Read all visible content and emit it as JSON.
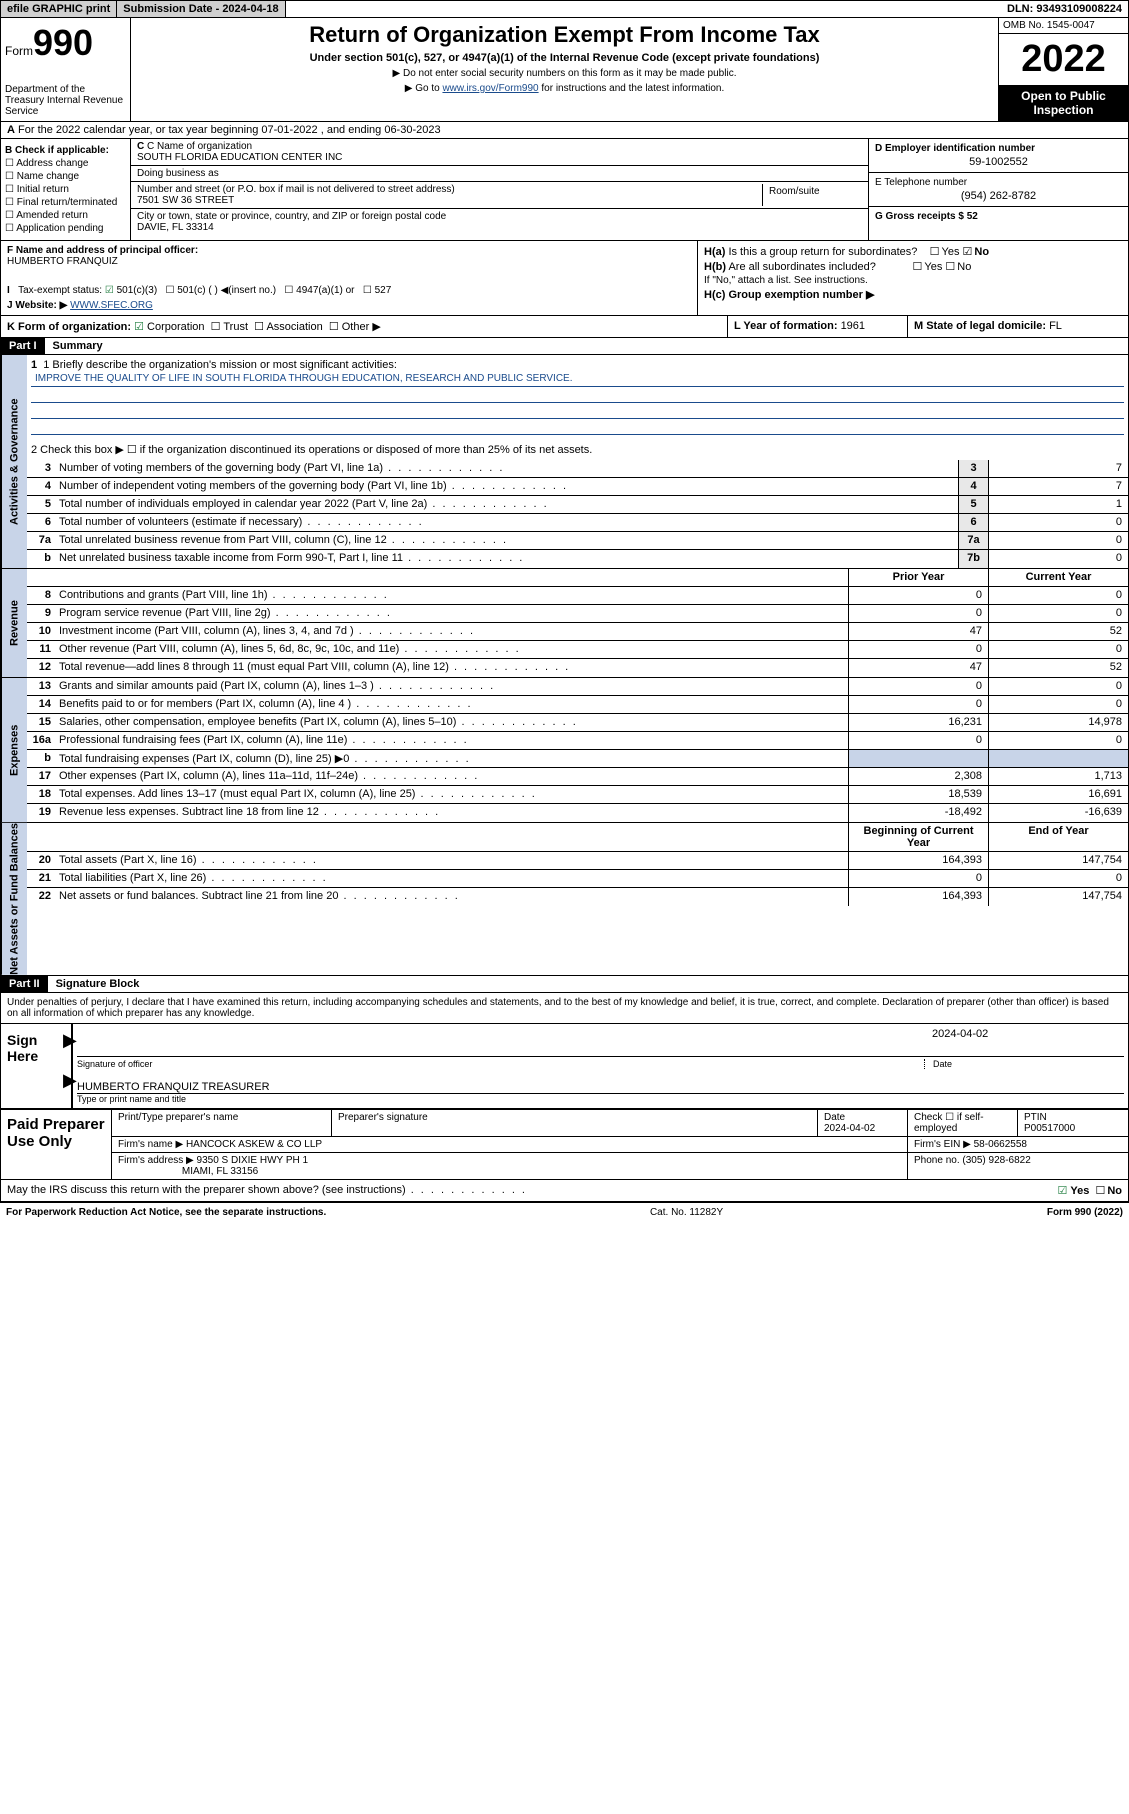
{
  "topbar": {
    "efile": "efile GRAPHIC print",
    "submission_label": "Submission Date - 2024-04-18",
    "dln": "DLN: 93493109008224"
  },
  "header": {
    "form_label": "Form",
    "form_num": "990",
    "title": "Return of Organization Exempt From Income Tax",
    "subtitle": "Under section 501(c), 527, or 4947(a)(1) of the Internal Revenue Code (except private foundations)",
    "note1": "Do not enter social security numbers on this form as it may be made public.",
    "note2_prefix": "Go to ",
    "note2_link": "www.irs.gov/Form990",
    "note2_suffix": " for instructions and the latest information.",
    "dept": "Department of the Treasury Internal Revenue Service",
    "omb": "OMB No. 1545-0047",
    "year": "2022",
    "inspection": "Open to Public Inspection"
  },
  "section_a": "For the 2022 calendar year, or tax year beginning 07-01-2022  , and ending 06-30-2023",
  "check_b": {
    "label": "B Check if applicable:",
    "items": [
      "Address change",
      "Name change",
      "Initial return",
      "Final return/terminated",
      "Amended return",
      "Application pending"
    ]
  },
  "col_c": {
    "name_label": "C Name of organization",
    "name": "SOUTH FLORIDA EDUCATION CENTER INC",
    "dba_label": "Doing business as",
    "addr_label": "Number and street (or P.O. box if mail is not delivered to street address)",
    "room_label": "Room/suite",
    "addr": "7501 SW 36 STREET",
    "city_label": "City or town, state or province, country, and ZIP or foreign postal code",
    "city": "DAVIE, FL  33314"
  },
  "col_d": {
    "ein_label": "D Employer identification number",
    "ein": "59-1002552",
    "phone_label": "E Telephone number",
    "phone": "(954) 262-8782",
    "gross_label": "G Gross receipts $ 52"
  },
  "row_f": {
    "label": "F  Name and address of principal officer:",
    "name": "HUMBERTO FRANQUIZ"
  },
  "row_h": {
    "ha": "H(a)  Is this a group return for subordinates?",
    "hb": "H(b)  Are all subordinates included?",
    "hb_note": "If \"No,\" attach a list. See instructions.",
    "hc": "H(c)  Group exemption number ▶",
    "yes": "Yes",
    "no": "No"
  },
  "row_i": "I    Tax-exempt status:",
  "row_i_opts": [
    "501(c)(3)",
    "501(c) (  ) ◀(insert no.)",
    "4947(a)(1) or",
    "527"
  ],
  "row_j": {
    "label": "J    Website: ▶ ",
    "val": "WWW.SFEC.ORG"
  },
  "row_k": "K Form of organization:",
  "row_k_opts": [
    "Corporation",
    "Trust",
    "Association",
    "Other ▶"
  ],
  "row_l": {
    "label": "L Year of formation: ",
    "val": "1961"
  },
  "row_m": {
    "label": "M State of legal domicile: ",
    "val": "FL"
  },
  "part1": {
    "header": "Part I",
    "title": "Summary",
    "line1_label": "1  Briefly describe the organization's mission or most significant activities:",
    "mission": "IMPROVE THE QUALITY OF LIFE IN SOUTH FLORIDA THROUGH EDUCATION, RESEARCH AND PUBLIC SERVICE.",
    "line2": "2    Check this box ▶ ☐  if the organization discontinued its operations or disposed of more than 25% of its net assets."
  },
  "vtabs": {
    "gov": "Activities & Governance",
    "rev": "Revenue",
    "exp": "Expenses",
    "net": "Net Assets or Fund Balances"
  },
  "gov_lines": [
    {
      "n": "3",
      "d": "Number of voting members of the governing body (Part VI, line 1a)",
      "b": "3",
      "v": "7"
    },
    {
      "n": "4",
      "d": "Number of independent voting members of the governing body (Part VI, line 1b)",
      "b": "4",
      "v": "7"
    },
    {
      "n": "5",
      "d": "Total number of individuals employed in calendar year 2022 (Part V, line 2a)",
      "b": "5",
      "v": "1"
    },
    {
      "n": "6",
      "d": "Total number of volunteers (estimate if necessary)",
      "b": "6",
      "v": "0"
    },
    {
      "n": "7a",
      "d": "Total unrelated business revenue from Part VIII, column (C), line 12",
      "b": "7a",
      "v": "0"
    },
    {
      "n": "b",
      "d": "Net unrelated business taxable income from Form 990-T, Part I, line 11",
      "b": "7b",
      "v": "0"
    }
  ],
  "col_headers": {
    "prior": "Prior Year",
    "current": "Current Year",
    "begin": "Beginning of Current Year",
    "end": "End of Year"
  },
  "rev_lines": [
    {
      "n": "8",
      "d": "Contributions and grants (Part VIII, line 1h)",
      "p": "0",
      "c": "0"
    },
    {
      "n": "9",
      "d": "Program service revenue (Part VIII, line 2g)",
      "p": "0",
      "c": "0"
    },
    {
      "n": "10",
      "d": "Investment income (Part VIII, column (A), lines 3, 4, and 7d )",
      "p": "47",
      "c": "52"
    },
    {
      "n": "11",
      "d": "Other revenue (Part VIII, column (A), lines 5, 6d, 8c, 9c, 10c, and 11e)",
      "p": "0",
      "c": "0"
    },
    {
      "n": "12",
      "d": "Total revenue—add lines 8 through 11 (must equal Part VIII, column (A), line 12)",
      "p": "47",
      "c": "52"
    }
  ],
  "exp_lines": [
    {
      "n": "13",
      "d": "Grants and similar amounts paid (Part IX, column (A), lines 1–3 )",
      "p": "0",
      "c": "0"
    },
    {
      "n": "14",
      "d": "Benefits paid to or for members (Part IX, column (A), line 4 )",
      "p": "0",
      "c": "0"
    },
    {
      "n": "15",
      "d": "Salaries, other compensation, employee benefits (Part IX, column (A), lines 5–10)",
      "p": "16,231",
      "c": "14,978"
    },
    {
      "n": "16a",
      "d": "Professional fundraising fees (Part IX, column (A), line 11e)",
      "p": "0",
      "c": "0"
    },
    {
      "n": "b",
      "d": "Total fundraising expenses (Part IX, column (D), line 25) ▶0",
      "p": "",
      "c": "",
      "gray": true
    },
    {
      "n": "17",
      "d": "Other expenses (Part IX, column (A), lines 11a–11d, 11f–24e)",
      "p": "2,308",
      "c": "1,713"
    },
    {
      "n": "18",
      "d": "Total expenses. Add lines 13–17 (must equal Part IX, column (A), line 25)",
      "p": "18,539",
      "c": "16,691"
    },
    {
      "n": "19",
      "d": "Revenue less expenses. Subtract line 18 from line 12",
      "p": "-18,492",
      "c": "-16,639"
    }
  ],
  "net_lines": [
    {
      "n": "20",
      "d": "Total assets (Part X, line 16)",
      "p": "164,393",
      "c": "147,754"
    },
    {
      "n": "21",
      "d": "Total liabilities (Part X, line 26)",
      "p": "0",
      "c": "0"
    },
    {
      "n": "22",
      "d": "Net assets or fund balances. Subtract line 21 from line 20",
      "p": "164,393",
      "c": "147,754"
    }
  ],
  "part2": {
    "header": "Part II",
    "title": "Signature Block"
  },
  "sig": {
    "declaration": "Under penalties of perjury, I declare that I have examined this return, including accompanying schedules and statements, and to the best of my knowledge and belief, it is true, correct, and complete. Declaration of preparer (other than officer) is based on all information of which preparer has any knowledge.",
    "sign_here": "Sign Here",
    "officer_sig": "Signature of officer",
    "date_label": "Date",
    "date": "2024-04-02",
    "officer_name": "HUMBERTO FRANQUIZ TREASURER",
    "name_label": "Type or print name and title"
  },
  "preparer": {
    "label": "Paid Preparer Use Only",
    "print_name": "Print/Type preparer's name",
    "prep_sig": "Preparer's signature",
    "date_label": "Date",
    "date": "2024-04-02",
    "check_label": "Check ☐ if self-employed",
    "ptin_label": "PTIN",
    "ptin": "P00517000",
    "firm_name_label": "Firm's name    ▶",
    "firm_name": "HANCOCK ASKEW & CO LLP",
    "firm_ein_label": "Firm's EIN ▶",
    "firm_ein": "58-0662558",
    "firm_addr_label": "Firm's address ▶",
    "firm_addr1": "9350 S DIXIE HWY PH 1",
    "firm_addr2": "MIAMI, FL  33156",
    "phone_label": "Phone no.",
    "phone": "(305) 928-6822"
  },
  "footer": {
    "discuss": "May the IRS discuss this return with the preparer shown above? (see instructions)",
    "yes": "Yes",
    "no": "No",
    "paperwork": "For Paperwork Reduction Act Notice, see the separate instructions.",
    "cat": "Cat. No. 11282Y",
    "form": "Form 990 (2022)"
  }
}
